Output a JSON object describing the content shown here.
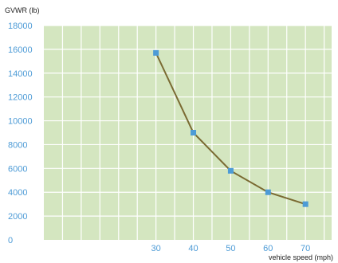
{
  "chart_data": {
    "type": "line",
    "title": "",
    "ylabel": "GVWR (lb)",
    "xlabel": "vehicle speed (mph)",
    "x": [
      30,
      40,
      50,
      60,
      70
    ],
    "y": [
      15700,
      9000,
      5800,
      4000,
      3000
    ],
    "xlim": [
      0,
      77
    ],
    "ylim": [
      0,
      18000
    ],
    "xticks": [
      0,
      30,
      40,
      50,
      60,
      70
    ],
    "yticks": [
      2000,
      4000,
      6000,
      8000,
      10000,
      12000,
      14000,
      16000,
      18000
    ],
    "grid": true,
    "colors": {
      "plot_background": "#d4e6c0",
      "grid": "#ffffff",
      "line": "#7a6a32",
      "marker": "#4d9bd6",
      "tick_text": "#4d9bd6"
    }
  }
}
